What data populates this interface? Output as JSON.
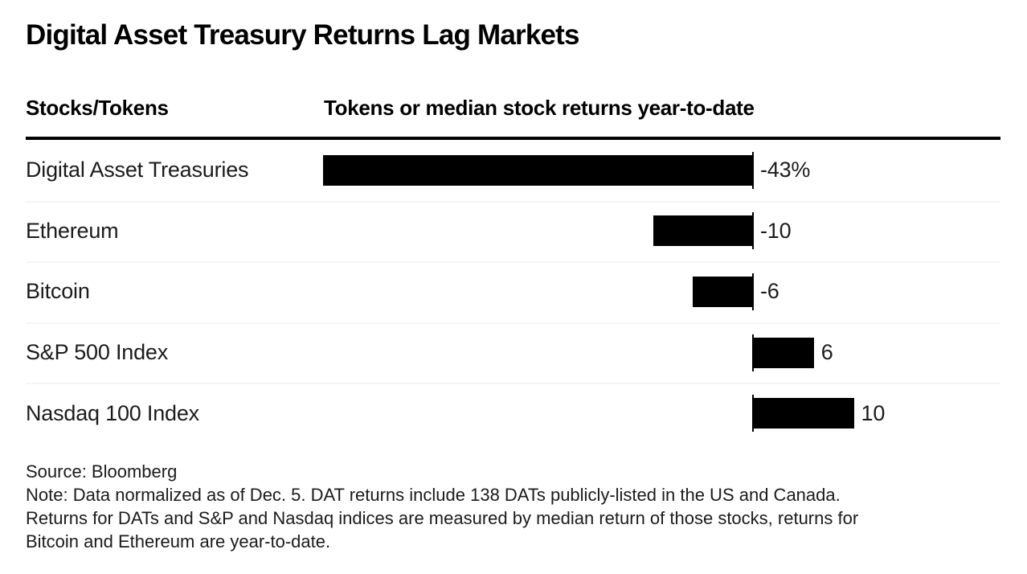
{
  "title": "Digital Asset Treasury Returns Lag Markets",
  "table": {
    "col1_header": "Stocks/Tokens",
    "col2_header": "Tokens or median stock returns year-to-date"
  },
  "chart_data": {
    "type": "bar",
    "orientation": "horizontal",
    "title": "Digital Asset Treasury Returns Lag Markets",
    "ylabel": "Stocks/Tokens",
    "xlabel": "Tokens or median stock returns year-to-date",
    "categories": [
      "Digital Asset Treasuries",
      "Ethereum",
      "Bitcoin",
      "S&P 500 Index",
      "Nasdaq 100 Index"
    ],
    "values": [
      -43,
      -10,
      -6,
      6,
      10
    ],
    "value_labels": [
      "-43%",
      "-10",
      "-6",
      "6",
      "10"
    ],
    "unit": "percent year-to-date return",
    "xlim": [
      -43,
      10
    ],
    "grid": false,
    "legend": false,
    "bar_color": "#000000"
  },
  "footer": {
    "source": "Source: Bloomberg",
    "note_lines": [
      "Note: Data normalized as of Dec. 5. DAT returns include 138 DATs publicly-listed in the US and Canada.",
      "Returns for DATs and S&P and Nasdaq indices are measured by median return of those stocks, returns for",
      "Bitcoin and Ethereum are year-to-date."
    ]
  },
  "colors": {
    "background": "#ffffff",
    "bar": "#000000",
    "header_rule": "#000000",
    "row_separator": "#f5f5f5",
    "text": "#1b1b1b"
  }
}
